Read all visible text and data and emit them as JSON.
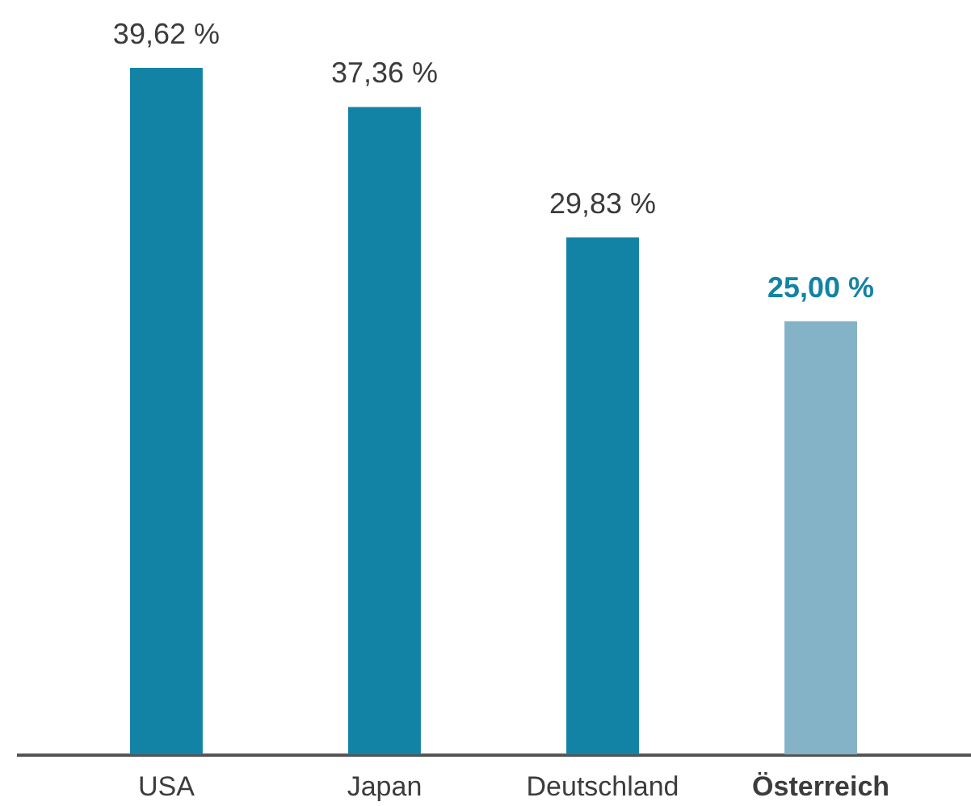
{
  "chart_data": {
    "type": "bar",
    "categories": [
      "USA",
      "Japan",
      "Deutschland",
      "Österreich"
    ],
    "values": [
      39.62,
      37.36,
      29.83,
      25.0
    ],
    "value_labels": [
      "39,62 %",
      "37,36 %",
      "29,83 %",
      "25,00 %"
    ],
    "colors": [
      "#1283a5",
      "#1283a5",
      "#1283a5",
      "#84b2c6"
    ],
    "tick_labels": "x"
  }
}
